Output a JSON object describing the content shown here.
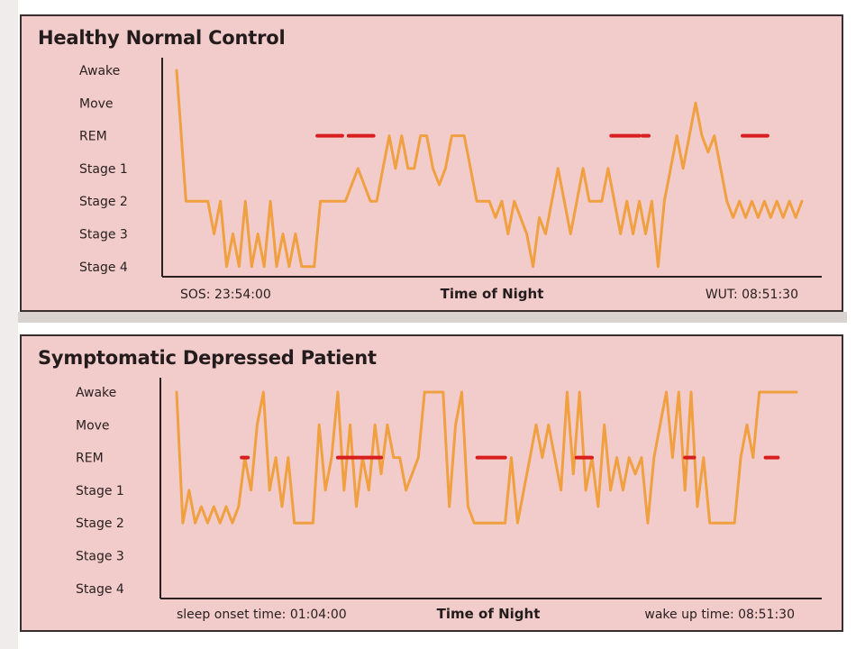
{
  "colors": {
    "panel_bg": "#f2cccb",
    "trace": "#f0a040",
    "rem_marker": "#d81e1e",
    "axis": "#2a2020"
  },
  "chart_data": [
    {
      "type": "line",
      "title": "Healthy Normal Control",
      "xlabel": "Time of Night",
      "start_label": "SOS: 23:54:00",
      "end_label": "WUT: 08:51:30",
      "y_categories": [
        "Awake",
        "Move",
        "REM",
        "Stage 1",
        "Stage 2",
        "Stage 3",
        "Stage 4"
      ],
      "x_range": [
        0,
        100
      ],
      "series": [
        {
          "points": [
            [
              0,
              0
            ],
            [
              1.5,
              4
            ],
            [
              5,
              4
            ],
            [
              6,
              5
            ],
            [
              7,
              4
            ],
            [
              8,
              6
            ],
            [
              9,
              5
            ],
            [
              10,
              6
            ],
            [
              11,
              4
            ],
            [
              12,
              6
            ],
            [
              13,
              5
            ],
            [
              14,
              6
            ],
            [
              15,
              4
            ],
            [
              16,
              6
            ],
            [
              17,
              5
            ],
            [
              18,
              6
            ],
            [
              19,
              5
            ],
            [
              20,
              6
            ],
            [
              22,
              6
            ],
            [
              23,
              4
            ],
            [
              25,
              4
            ],
            [
              27,
              4
            ],
            [
              28,
              3.5
            ],
            [
              29,
              3
            ],
            [
              30,
              3.5
            ],
            [
              31,
              4
            ],
            [
              32,
              4
            ],
            [
              33,
              3
            ],
            [
              34,
              2
            ],
            [
              35,
              3
            ],
            [
              36,
              2
            ],
            [
              37,
              3
            ],
            [
              38,
              3
            ],
            [
              39,
              2
            ],
            [
              40,
              2
            ],
            [
              41,
              3
            ],
            [
              42,
              3.5
            ],
            [
              43,
              3
            ],
            [
              44,
              2
            ],
            [
              46,
              2
            ],
            [
              47,
              3
            ],
            [
              48,
              4
            ],
            [
              50,
              4
            ],
            [
              51,
              4.5
            ],
            [
              52,
              4
            ],
            [
              53,
              5
            ],
            [
              54,
              4
            ],
            [
              55,
              4.5
            ],
            [
              56,
              5
            ],
            [
              57,
              6
            ],
            [
              58,
              4.5
            ],
            [
              59,
              5
            ],
            [
              60,
              4
            ],
            [
              61,
              3
            ],
            [
              62,
              4
            ],
            [
              63,
              5
            ],
            [
              64,
              4
            ],
            [
              65,
              3
            ],
            [
              66,
              4
            ],
            [
              68,
              4
            ],
            [
              69,
              3
            ],
            [
              70,
              4
            ],
            [
              71,
              5
            ],
            [
              72,
              4
            ],
            [
              73,
              5
            ],
            [
              74,
              4
            ],
            [
              75,
              5
            ],
            [
              76,
              4
            ],
            [
              77,
              6
            ],
            [
              78,
              4
            ],
            [
              79,
              3
            ],
            [
              80,
              2
            ],
            [
              81,
              3
            ],
            [
              82,
              2
            ],
            [
              83,
              1
            ],
            [
              84,
              2
            ],
            [
              85,
              2.5
            ],
            [
              86,
              2
            ],
            [
              87,
              3
            ],
            [
              88,
              4
            ],
            [
              89,
              4.5
            ],
            [
              90,
              4
            ],
            [
              91,
              4.5
            ],
            [
              92,
              4
            ],
            [
              93,
              4.5
            ],
            [
              94,
              4
            ],
            [
              95,
              4.5
            ],
            [
              96,
              4
            ],
            [
              97,
              4.5
            ],
            [
              98,
              4
            ],
            [
              99,
              4.5
            ],
            [
              100,
              4
            ]
          ],
          "color": "#f0a040"
        }
      ],
      "rem_markers": [
        [
          22.5,
          26.5
        ],
        [
          27.5,
          31.5
        ],
        [
          69.5,
          74
        ],
        [
          74.5,
          75.5
        ],
        [
          90.5,
          94.5
        ]
      ],
      "grid": false
    },
    {
      "type": "line",
      "title": "Symptomatic Depressed Patient",
      "xlabel": "Time of Night",
      "start_label": "sleep onset time: 01:04:00",
      "end_label": "wake up time: 08:51:30",
      "y_categories": [
        "Awake",
        "Move",
        "REM",
        "Stage 1",
        "Stage 2",
        "Stage 3",
        "Stage 4"
      ],
      "x_range": [
        0,
        100
      ],
      "series": [
        {
          "points": [
            [
              0,
              0
            ],
            [
              1,
              4
            ],
            [
              2,
              3
            ],
            [
              3,
              4
            ],
            [
              4,
              3.5
            ],
            [
              5,
              4
            ],
            [
              6,
              3.5
            ],
            [
              7,
              4
            ],
            [
              8,
              3.5
            ],
            [
              9,
              4
            ],
            [
              10,
              3.5
            ],
            [
              11,
              2
            ],
            [
              12,
              3
            ],
            [
              13,
              1
            ],
            [
              14,
              0
            ],
            [
              15,
              3
            ],
            [
              16,
              2
            ],
            [
              17,
              3.5
            ],
            [
              18,
              2
            ],
            [
              19,
              4
            ],
            [
              22,
              4
            ],
            [
              23,
              1
            ],
            [
              24,
              3
            ],
            [
              25,
              2
            ],
            [
              26,
              0
            ],
            [
              27,
              3
            ],
            [
              28,
              1
            ],
            [
              29,
              3.5
            ],
            [
              30,
              2
            ],
            [
              31,
              3
            ],
            [
              32,
              1
            ],
            [
              33,
              2.5
            ],
            [
              34,
              1
            ],
            [
              35,
              2
            ],
            [
              36,
              2
            ],
            [
              37,
              3
            ],
            [
              38,
              2.5
            ],
            [
              39,
              2
            ],
            [
              40,
              0
            ],
            [
              43,
              0
            ],
            [
              44,
              3.5
            ],
            [
              45,
              1
            ],
            [
              46,
              0
            ],
            [
              47,
              3.5
            ],
            [
              48,
              4
            ],
            [
              53,
              4
            ],
            [
              54,
              2
            ],
            [
              55,
              4
            ],
            [
              56,
              3
            ],
            [
              57,
              2
            ],
            [
              58,
              1
            ],
            [
              59,
              2
            ],
            [
              60,
              1
            ],
            [
              61,
              2
            ],
            [
              62,
              3
            ],
            [
              63,
              0
            ],
            [
              64,
              2.5
            ],
            [
              65,
              0
            ],
            [
              66,
              3
            ],
            [
              67,
              2
            ],
            [
              68,
              3.5
            ],
            [
              69,
              1
            ],
            [
              70,
              3
            ],
            [
              71,
              2
            ],
            [
              72,
              3
            ],
            [
              73,
              2
            ],
            [
              74,
              2.5
            ],
            [
              75,
              2
            ],
            [
              76,
              4
            ],
            [
              77,
              2
            ],
            [
              78,
              1
            ],
            [
              79,
              0
            ],
            [
              80,
              2
            ],
            [
              81,
              0
            ],
            [
              82,
              3
            ],
            [
              83,
              0
            ],
            [
              84,
              3.5
            ],
            [
              85,
              2
            ],
            [
              86,
              4
            ],
            [
              90,
              4
            ],
            [
              91,
              2
            ],
            [
              92,
              1
            ],
            [
              93,
              2
            ],
            [
              94,
              0
            ],
            [
              97,
              0
            ],
            [
              100,
              0
            ]
          ],
          "color": "#f0a040"
        }
      ],
      "rem_markers": [
        [
          10.5,
          11.5
        ],
        [
          26,
          33
        ],
        [
          48.5,
          53
        ],
        [
          64.5,
          67
        ],
        [
          82,
          83.5
        ],
        [
          95,
          97
        ]
      ],
      "grid": false
    }
  ]
}
